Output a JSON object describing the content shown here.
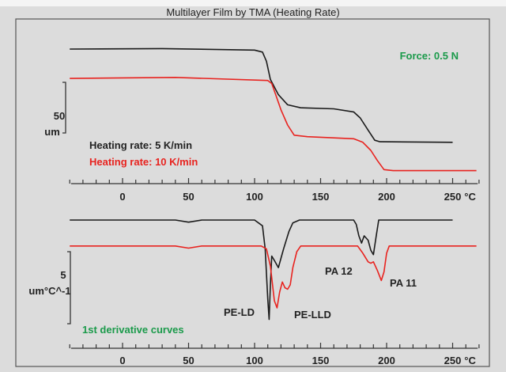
{
  "chart_data": [
    {
      "type": "line",
      "title": "Multilayer Film by TMA (Heating Rate)",
      "xlabel": "°C",
      "ylabel": "um",
      "scale_bar": {
        "value": "50",
        "unit": "um",
        "um": 50
      },
      "x_ticks": [
        "0",
        "50",
        "100",
        "150",
        "200",
        "250"
      ],
      "x_tick_values": [
        0,
        50,
        100,
        150,
        200,
        250
      ],
      "xlim": [
        -40,
        270
      ],
      "grid": false,
      "annotation": "Force: 0.5 N",
      "series": [
        {
          "name": "Heating rate: 5 K/min",
          "color": "#1a1a1a",
          "x": [
            -40,
            30,
            100,
            106,
            109,
            112,
            118,
            125,
            135,
            160,
            175,
            180,
            186,
            191,
            195,
            250
          ],
          "y": [
            0,
            0.5,
            -1,
            -3,
            -12,
            -30,
            -45,
            -55,
            -58,
            -59,
            -62,
            -68,
            -80,
            -90,
            -91.5,
            -92
          ]
        },
        {
          "name": "Heating rate: 10 K/min",
          "color": "#e8231f",
          "x": [
            -40,
            40,
            110,
            113,
            116,
            120,
            125,
            130,
            140,
            175,
            182,
            188,
            193,
            198,
            205,
            268
          ],
          "y": [
            -29,
            -28,
            -31,
            -34,
            -45,
            -60,
            -75,
            -85,
            -86.5,
            -88.5,
            -92,
            -100,
            -110,
            -119,
            -120,
            -120
          ]
        }
      ]
    },
    {
      "type": "line",
      "xlabel": "°C",
      "ylabel": "um°C^-1",
      "scale_bar": {
        "value": "5",
        "unit": "um°C^-1",
        "units": 5
      },
      "x_ticks": [
        "0",
        "50",
        "100",
        "150",
        "200",
        "250"
      ],
      "x_tick_values": [
        0,
        50,
        100,
        150,
        200,
        250
      ],
      "xlim": [
        -40,
        270
      ],
      "grid": false,
      "annotation": "1st derivative curves",
      "peak_labels": [
        "PE-LD",
        "PE-LLD",
        "PA 12",
        "PA 11"
      ],
      "series": [
        {
          "color": "#1a1a1a",
          "x": [
            -40,
            40,
            50,
            60,
            100,
            106,
            108,
            110,
            111,
            112,
            113,
            115,
            118,
            122,
            126,
            129,
            134,
            175,
            177,
            179,
            181,
            183,
            186,
            188,
            190,
            192,
            194,
            250
          ],
          "y": [
            0,
            0,
            -0.15,
            0,
            0,
            -0.4,
            -2,
            -5.5,
            -6.9,
            -4.5,
            -2.5,
            -2.8,
            -3.3,
            -2,
            -0.8,
            -0.2,
            0,
            0,
            -0.3,
            -1.1,
            -1.6,
            -1.1,
            -1.4,
            -2.1,
            -2.4,
            -1.2,
            0,
            0
          ]
        },
        {
          "color": "#e8231f",
          "x": [
            -40,
            40,
            50,
            60,
            105,
            109,
            112,
            115,
            117,
            119,
            121,
            123,
            125,
            127,
            129,
            132,
            135,
            178,
            182,
            186,
            188,
            190,
            193,
            196,
            198,
            200,
            202,
            268
          ],
          "y": [
            -1.8,
            -1.8,
            -1.95,
            -1.8,
            -1.8,
            -2.0,
            -3.2,
            -5.6,
            -6.1,
            -5.0,
            -4.3,
            -4.7,
            -4.8,
            -4.5,
            -3.3,
            -2.2,
            -1.8,
            -1.8,
            -2.3,
            -2.9,
            -3.0,
            -2.9,
            -3.5,
            -4.2,
            -3.6,
            -2.3,
            -1.8,
            -1.8
          ]
        }
      ]
    }
  ]
}
